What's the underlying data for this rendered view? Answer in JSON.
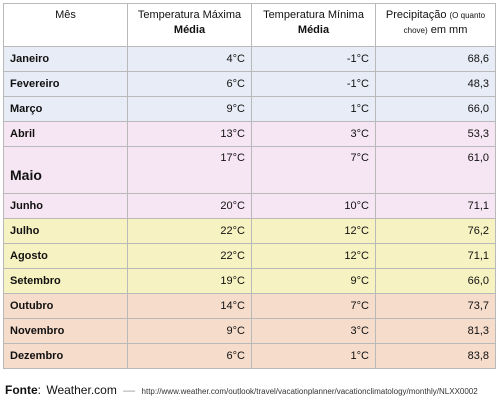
{
  "colors": {
    "winter": "#e8ecf7",
    "spring": "#f6e6f3",
    "summer": "#f7f2c1",
    "autumn": "#f6dccb"
  },
  "headers": {
    "month": "Mês",
    "tmax_line1": "Temperatura Máxima",
    "tmax_line2": "Média",
    "tmin_line1": "Temperatura Mínima",
    "tmin_line2": "Média",
    "precip_main": "Precipitação",
    "precip_note_a": "(O quanto",
    "precip_note_b": "chove)",
    "precip_unit": "em mm"
  },
  "rows": [
    {
      "month": "Janeiro",
      "tmax": "4°C",
      "tmin": "-1°C",
      "precip": "68,6",
      "season": "winter"
    },
    {
      "month": "Fevereiro",
      "tmax": "6°C",
      "tmin": "-1°C",
      "precip": "48,3",
      "season": "winter"
    },
    {
      "month": "Março",
      "tmax": "9°C",
      "tmin": "1°C",
      "precip": "66,0",
      "season": "winter"
    },
    {
      "month": "Abril",
      "tmax": "13°C",
      "tmin": "3°C",
      "precip": "53,3",
      "season": "spring"
    },
    {
      "month": "Maio",
      "tmax": "17°C",
      "tmin": "7°C",
      "precip": "61,0",
      "season": "spring"
    },
    {
      "month": "Junho",
      "tmax": "20°C",
      "tmin": "10°C",
      "precip": "71,1",
      "season": "spring"
    },
    {
      "month": "Julho",
      "tmax": "22°C",
      "tmin": "12°C",
      "precip": "76,2",
      "season": "summer"
    },
    {
      "month": "Agosto",
      "tmax": "22°C",
      "tmin": "12°C",
      "precip": "71,1",
      "season": "summer"
    },
    {
      "month": "Setembro",
      "tmax": "19°C",
      "tmin": "9°C",
      "precip": "66,0",
      "season": "summer"
    },
    {
      "month": "Outubro",
      "tmax": "14°C",
      "tmin": "7°C",
      "precip": "73,7",
      "season": "autumn"
    },
    {
      "month": "Novembro",
      "tmax": "9°C",
      "tmin": "3°C",
      "precip": "81,3",
      "season": "autumn"
    },
    {
      "month": "Dezembro",
      "tmax": "6°C",
      "tmin": "1°C",
      "precip": "83,8",
      "season": "autumn"
    }
  ],
  "source": {
    "label": "Fonte",
    "site": "Weather.com",
    "url": "http://www.weather.com/outlook/travel/vacationplanner/vacationclimatology/monthly/NLXX0002"
  }
}
